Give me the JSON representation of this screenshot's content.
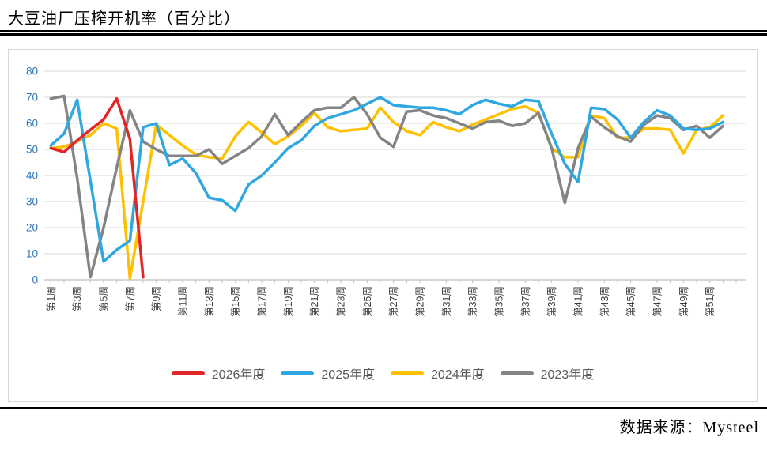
{
  "title": "大豆油厂压榨开机率（百分比）",
  "footer": {
    "source": "数据来源：Mysteel"
  },
  "chart_data": {
    "type": "line",
    "title": "大豆油厂压榨开机率（百分比）",
    "xlabel": "",
    "ylabel": "",
    "x_unit": "周",
    "weeks_total": 52,
    "x_tick_labels": [
      "第1周",
      "第3周",
      "第5周",
      "第7周",
      "第9周",
      "第11周",
      "第13周",
      "第15周",
      "第17周",
      "第19周",
      "第21周",
      "第23周",
      "第25周",
      "第27周",
      "第29周",
      "第31周",
      "第33周",
      "第35周",
      "第37周",
      "第39周",
      "第41周",
      "第43周",
      "第45周",
      "第47周",
      "第49周",
      "第51周"
    ],
    "ylim": [
      0,
      80
    ],
    "y_ticks": [
      0,
      10,
      20,
      30,
      40,
      50,
      60,
      70,
      80
    ],
    "grid": "horizontal",
    "legend_position": "bottom",
    "axis_tick_label_color": "#2e75b6",
    "x_tick_label_color": "#3f3f3f",
    "gridline_color": "#d9d9d9",
    "axis_line_color": "#bfbfbf",
    "draw_order": [
      2,
      3,
      1,
      0
    ],
    "series": [
      {
        "name": "2026年度",
        "color": "#e42528",
        "values": [
          50.5,
          49,
          53.5,
          57.5,
          61.5,
          69.5,
          54,
          1
        ]
      },
      {
        "name": "2025年度",
        "color": "#2fa8e1",
        "values": [
          51.5,
          56,
          69,
          38,
          7,
          11.5,
          15,
          58.5,
          60,
          44,
          46.5,
          41,
          31.5,
          30.5,
          26.5,
          36.5,
          40,
          45,
          50.5,
          53.5,
          59,
          62,
          63.5,
          65,
          67.5,
          70,
          67,
          66.5,
          66,
          66,
          65,
          63.5,
          67,
          69,
          67.5,
          66.5,
          69,
          68.5,
          56,
          44.5,
          37.5,
          66,
          65.5,
          61.5,
          54.5,
          60.5,
          65,
          63,
          58,
          57.5,
          58,
          60.5
        ]
      },
      {
        "name": "2024年度",
        "color": "#ffc000",
        "values": [
          50.5,
          51,
          53,
          55.5,
          60,
          58,
          0.5,
          30,
          59.5,
          55.5,
          51.5,
          48,
          47,
          46.5,
          55,
          60.5,
          56.5,
          52,
          55,
          59,
          64,
          58.5,
          57,
          57.5,
          58,
          66,
          60.5,
          57,
          55.5,
          60.5,
          58.5,
          57,
          59.5,
          61.5,
          63.5,
          65.5,
          66.5,
          64,
          50.5,
          47,
          47,
          63,
          62,
          54.5,
          54.5,
          58,
          58,
          57.5,
          48.5,
          57.5,
          58.5,
          63
        ]
      },
      {
        "name": "2023年度",
        "color": "#848484",
        "values": [
          69.5,
          70.5,
          39,
          1,
          20,
          43,
          65,
          53,
          50,
          47.5,
          47.5,
          47.5,
          50,
          44.5,
          47.5,
          50.5,
          55,
          63.5,
          55.5,
          60.5,
          65,
          66,
          66,
          70,
          63.5,
          54.5,
          51,
          64.5,
          65,
          63,
          62,
          60,
          58,
          60.5,
          61,
          59,
          60,
          64,
          50.5,
          29.5,
          50.5,
          62.5,
          58.5,
          55,
          53,
          59.5,
          63,
          62,
          57.5,
          59,
          54.5,
          59
        ]
      }
    ]
  }
}
